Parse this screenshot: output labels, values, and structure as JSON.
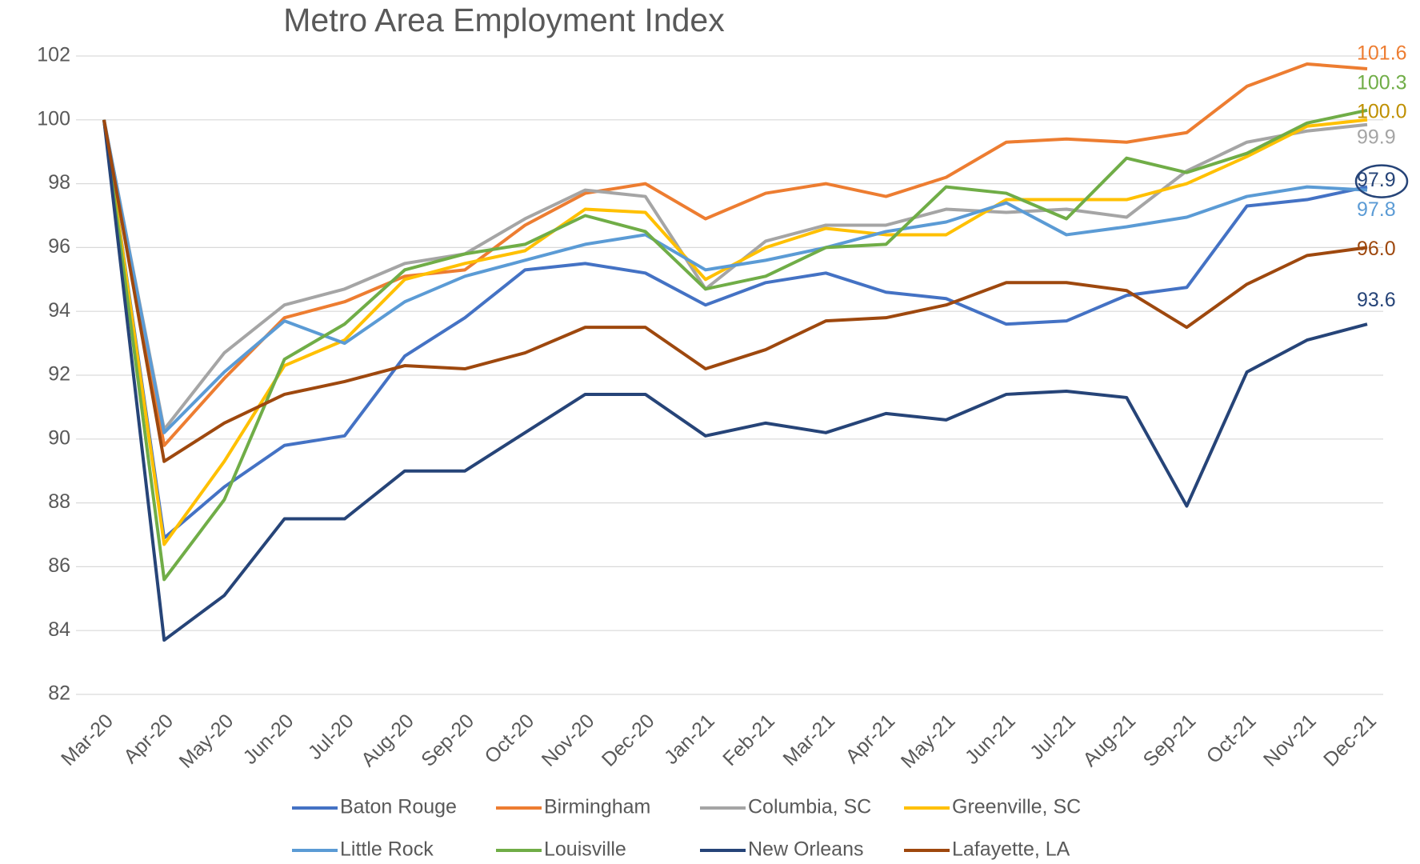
{
  "chart_data": {
    "type": "line",
    "title": "Metro Area Employment Index",
    "categories": [
      "Mar-20",
      "Apr-20",
      "May-20",
      "Jun-20",
      "Jul-20",
      "Aug-20",
      "Sep-20",
      "Oct-20",
      "Nov-20",
      "Dec-20",
      "Jan-21",
      "Feb-21",
      "Mar-21",
      "Apr-21",
      "May-21",
      "Jun-21",
      "Jul-21",
      "Aug-21",
      "Sep-21",
      "Oct-21",
      "Nov-21",
      "Dec-21"
    ],
    "ylim": [
      82,
      102
    ],
    "yticks": [
      82,
      84,
      86,
      88,
      90,
      92,
      94,
      96,
      98,
      100,
      102
    ],
    "grid": true,
    "series": [
      {
        "name": "Baton Rouge",
        "color": "#4472c4",
        "end_label": "97.9",
        "label_color": "#264478",
        "highlight": true,
        "values": [
          100,
          86.9,
          88.5,
          89.8,
          90.1,
          92.6,
          93.8,
          95.3,
          95.5,
          95.2,
          94.2,
          94.9,
          95.2,
          94.6,
          94.4,
          93.6,
          93.7,
          94.5,
          94.75,
          97.3,
          97.5,
          97.9
        ]
      },
      {
        "name": "Birmingham",
        "color": "#ed7d31",
        "end_label": "101.6",
        "values": [
          100,
          89.8,
          91.9,
          93.8,
          94.3,
          95.1,
          95.3,
          96.7,
          97.7,
          98.0,
          96.9,
          97.7,
          98.0,
          97.6,
          98.2,
          99.3,
          99.4,
          99.3,
          99.6,
          101.05,
          101.75,
          101.6
        ]
      },
      {
        "name": "Columbia, SC",
        "color": "#a5a5a5",
        "end_label": "99.9",
        "values": [
          100,
          90.3,
          92.7,
          94.2,
          94.7,
          95.5,
          95.8,
          96.9,
          97.8,
          97.6,
          94.7,
          96.2,
          96.7,
          96.7,
          97.2,
          97.1,
          97.2,
          96.95,
          98.4,
          99.3,
          99.65,
          99.85
        ]
      },
      {
        "name": "Greenville, SC",
        "color": "#ffc000",
        "end_label": "100.0",
        "label_color": "#bf9000",
        "values": [
          100,
          86.7,
          89.3,
          92.3,
          93.1,
          95.0,
          95.5,
          95.9,
          97.2,
          97.1,
          95.0,
          96.0,
          96.6,
          96.4,
          96.4,
          97.5,
          97.5,
          97.5,
          98.0,
          98.85,
          99.8,
          100.0
        ]
      },
      {
        "name": "Little Rock",
        "color": "#5b9bd5",
        "end_label": "97.8",
        "values": [
          100,
          90.2,
          92.1,
          93.7,
          93.0,
          94.3,
          95.1,
          95.6,
          96.1,
          96.4,
          95.3,
          95.6,
          96.0,
          96.5,
          96.8,
          97.4,
          96.4,
          96.65,
          96.95,
          97.6,
          97.9,
          97.8
        ]
      },
      {
        "name": "Louisville",
        "color": "#70ad47",
        "end_label": "100.3",
        "values": [
          100,
          85.6,
          88.1,
          92.5,
          93.6,
          95.3,
          95.8,
          96.1,
          97.0,
          96.5,
          94.7,
          95.1,
          96.0,
          96.1,
          97.9,
          97.7,
          96.9,
          98.8,
          98.35,
          98.95,
          99.9,
          100.3
        ]
      },
      {
        "name": "New Orleans",
        "color": "#264478",
        "end_label": "93.6",
        "values": [
          100,
          83.7,
          85.1,
          87.5,
          87.5,
          89.0,
          89.0,
          90.2,
          91.4,
          91.4,
          90.1,
          90.5,
          90.2,
          90.8,
          90.6,
          91.4,
          91.5,
          91.3,
          87.9,
          92.1,
          93.1,
          93.6
        ]
      },
      {
        "name": "Lafayette, LA",
        "color": "#9e480e",
        "end_label": "96.0",
        "values": [
          100,
          89.3,
          90.5,
          91.4,
          91.8,
          92.3,
          92.2,
          92.7,
          93.5,
          93.5,
          92.2,
          92.8,
          93.7,
          93.8,
          94.2,
          94.9,
          94.9,
          94.65,
          93.5,
          94.85,
          95.75,
          96.0
        ]
      }
    ]
  }
}
